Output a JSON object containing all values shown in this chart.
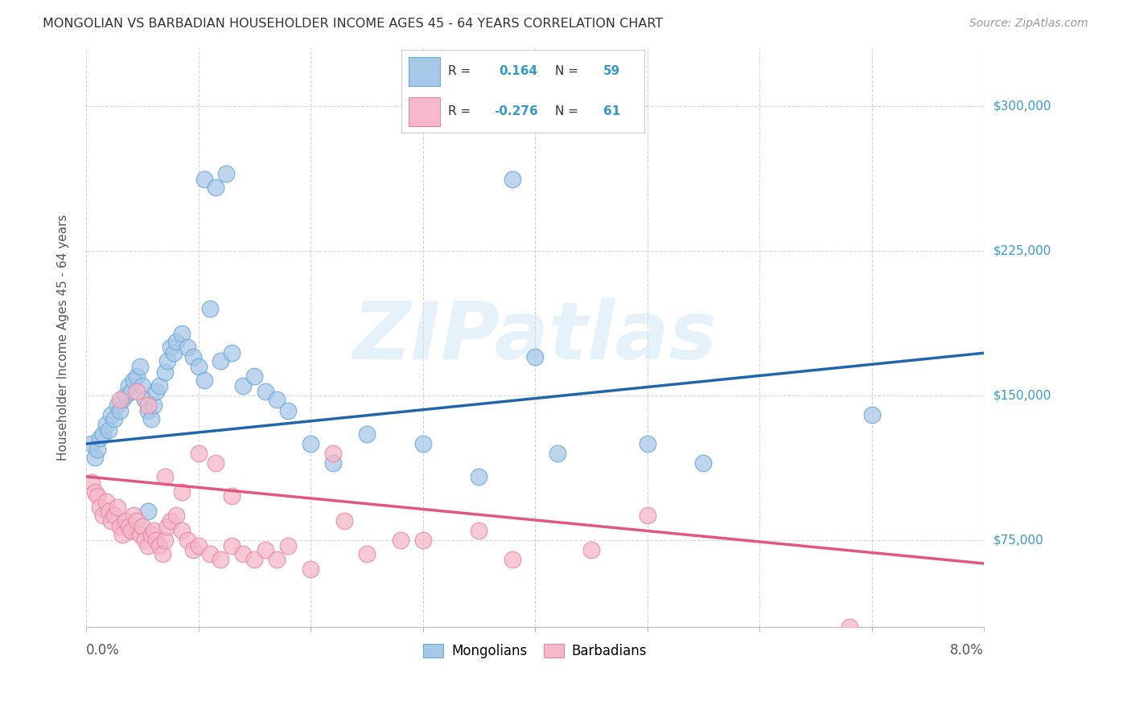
{
  "title": "MONGOLIAN VS BARBADIAN HOUSEHOLDER INCOME AGES 45 - 64 YEARS CORRELATION CHART",
  "source": "Source: ZipAtlas.com",
  "ylabel": "Householder Income Ages 45 - 64 years",
  "watermark": "ZIPatlas",
  "legend_mongolians": "Mongolians",
  "legend_barbadians": "Barbadians",
  "mongolian_R": "0.164",
  "mongolian_N": "59",
  "barbadian_R": "-0.276",
  "barbadian_N": "61",
  "blue_color": "#a8c8e8",
  "blue_edge_color": "#6aaad4",
  "blue_line_color": "#2166ac",
  "pink_color": "#f4b8c8",
  "pink_edge_color": "#e888a8",
  "pink_line_color": "#e05880",
  "label_color": "#3399cc",
  "background_color": "#ffffff",
  "grid_color": "#cccccc",
  "xlim": [
    0.0,
    8.0
  ],
  "ylim": [
    30000,
    330000
  ],
  "ytick_vals": [
    75000,
    150000,
    225000,
    300000
  ],
  "ytick_labels": [
    "$75,000",
    "$150,000",
    "$225,000",
    "$300,000"
  ],
  "mon_x": [
    0.05,
    0.08,
    0.1,
    0.12,
    0.15,
    0.18,
    0.2,
    0.22,
    0.25,
    0.28,
    0.3,
    0.32,
    0.35,
    0.38,
    0.4,
    0.42,
    0.45,
    0.48,
    0.5,
    0.52,
    0.55,
    0.58,
    0.6,
    0.62,
    0.65,
    0.7,
    0.72,
    0.75,
    0.78,
    0.8,
    0.85,
    0.9,
    0.95,
    1.0,
    1.05,
    1.1,
    1.2,
    1.3,
    1.4,
    1.5,
    1.6,
    1.7,
    1.8,
    2.0,
    2.2,
    2.5,
    3.0,
    3.5,
    4.0,
    5.0,
    5.5,
    7.0,
    1.05,
    1.15,
    1.25,
    3.8,
    4.2,
    0.4,
    0.55
  ],
  "mon_y": [
    125000,
    118000,
    122000,
    128000,
    130000,
    135000,
    132000,
    140000,
    138000,
    145000,
    142000,
    148000,
    150000,
    155000,
    152000,
    158000,
    160000,
    165000,
    155000,
    148000,
    142000,
    138000,
    145000,
    152000,
    155000,
    162000,
    168000,
    175000,
    172000,
    178000,
    182000,
    175000,
    170000,
    165000,
    158000,
    195000,
    168000,
    172000,
    155000,
    160000,
    152000,
    148000,
    142000,
    125000,
    115000,
    130000,
    125000,
    108000,
    170000,
    125000,
    115000,
    140000,
    262000,
    258000,
    265000,
    262000,
    120000,
    80000,
    90000
  ],
  "bar_x": [
    0.05,
    0.08,
    0.1,
    0.12,
    0.15,
    0.18,
    0.2,
    0.22,
    0.25,
    0.28,
    0.3,
    0.32,
    0.35,
    0.38,
    0.4,
    0.42,
    0.45,
    0.48,
    0.5,
    0.52,
    0.55,
    0.58,
    0.6,
    0.62,
    0.65,
    0.68,
    0.7,
    0.72,
    0.75,
    0.8,
    0.85,
    0.9,
    0.95,
    1.0,
    1.1,
    1.2,
    1.3,
    1.4,
    1.5,
    1.6,
    1.7,
    1.8,
    2.0,
    2.3,
    2.5,
    3.0,
    3.5,
    3.8,
    4.5,
    5.0,
    6.8,
    0.3,
    0.45,
    0.55,
    0.7,
    0.85,
    1.0,
    1.15,
    1.3,
    2.2,
    2.8
  ],
  "bar_y": [
    105000,
    100000,
    98000,
    92000,
    88000,
    95000,
    90000,
    85000,
    88000,
    92000,
    82000,
    78000,
    85000,
    82000,
    80000,
    88000,
    85000,
    78000,
    82000,
    75000,
    72000,
    78000,
    80000,
    75000,
    72000,
    68000,
    75000,
    82000,
    85000,
    88000,
    80000,
    75000,
    70000,
    72000,
    68000,
    65000,
    72000,
    68000,
    65000,
    70000,
    65000,
    72000,
    60000,
    85000,
    68000,
    75000,
    80000,
    65000,
    70000,
    88000,
    30000,
    148000,
    152000,
    145000,
    108000,
    100000,
    120000,
    115000,
    98000,
    120000,
    75000
  ],
  "mon_line_x0": 0.0,
  "mon_line_x1": 8.0,
  "mon_line_y0": 125000,
  "mon_line_y1": 172000,
  "bar_line_x0": 0.0,
  "bar_line_x1": 8.0,
  "bar_line_y0": 108000,
  "bar_line_y1": 63000
}
